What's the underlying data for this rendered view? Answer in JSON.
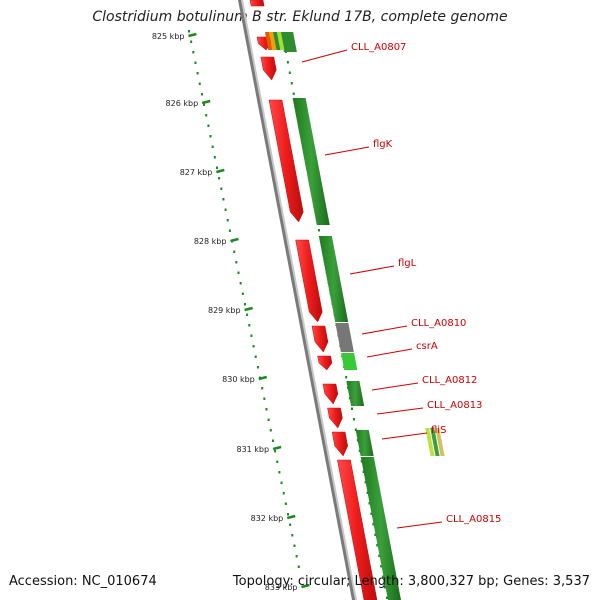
{
  "title": "Clostridium botulinum B str. Eklund 17B, complete genome",
  "accession": "Accession: NC_010674",
  "stats": "Topology: circular; Length: 3,800,327 bp; Genes: 3,537",
  "ticks": [
    "825 kbp",
    "826 kbp",
    "827 kbp",
    "828 kbp",
    "829 kbp",
    "830 kbp",
    "831 kbp",
    "832 kbp",
    "833 kbp"
  ],
  "genes": [
    "CLL_A0807",
    "flgK",
    "flgL",
    "CLL_A0810",
    "csrA",
    "CLL_A0812",
    "CLL_A0813",
    "fliS",
    "CLL_A0815"
  ],
  "colors": {
    "forward_cds": "#ee1c1c",
    "gene_track": "#2e8b2e",
    "label": "#cc0000",
    "backbone": "#7a7a7a",
    "tick": "#1e8a1e"
  }
}
